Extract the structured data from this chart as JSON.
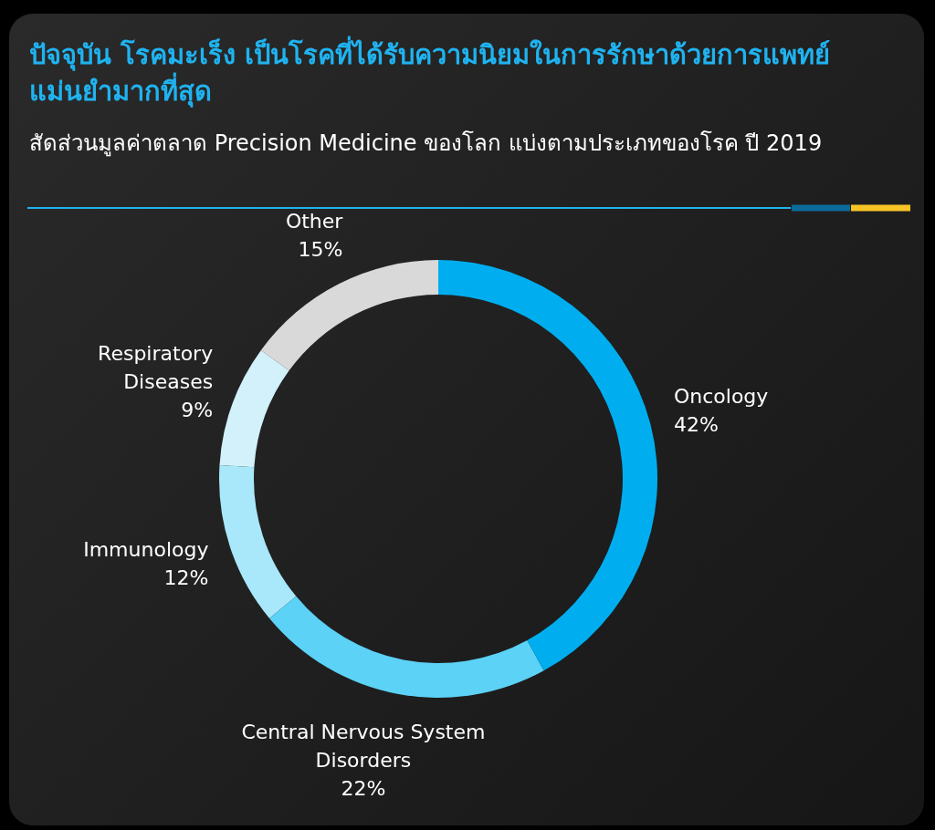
{
  "chart_data": {
    "type": "donut",
    "title": "ปัจจุบัน โรคมะเร็ง เป็นโรคที่ได้รับความนิยมในการรักษาด้วยการแพทย์แม่นยำมากที่สุด",
    "subtitle": "สัดส่วนมูลค่าตลาด Precision Medicine ของโลก แบ่งตามประเภทของโรค ปี 2019",
    "categories": [
      "Oncology",
      "Central Nervous System Disorders",
      "Immunology",
      "Respiratory Diseases",
      "Other"
    ],
    "values": [
      42,
      22,
      12,
      9,
      15
    ],
    "colors": [
      "#00aeef",
      "#5bd2f6",
      "#a9e7fa",
      "#d2f1fb",
      "#d9d9d9"
    ],
    "value_labels": [
      "42%",
      "22%",
      "12%",
      "9%",
      "15%"
    ]
  }
}
